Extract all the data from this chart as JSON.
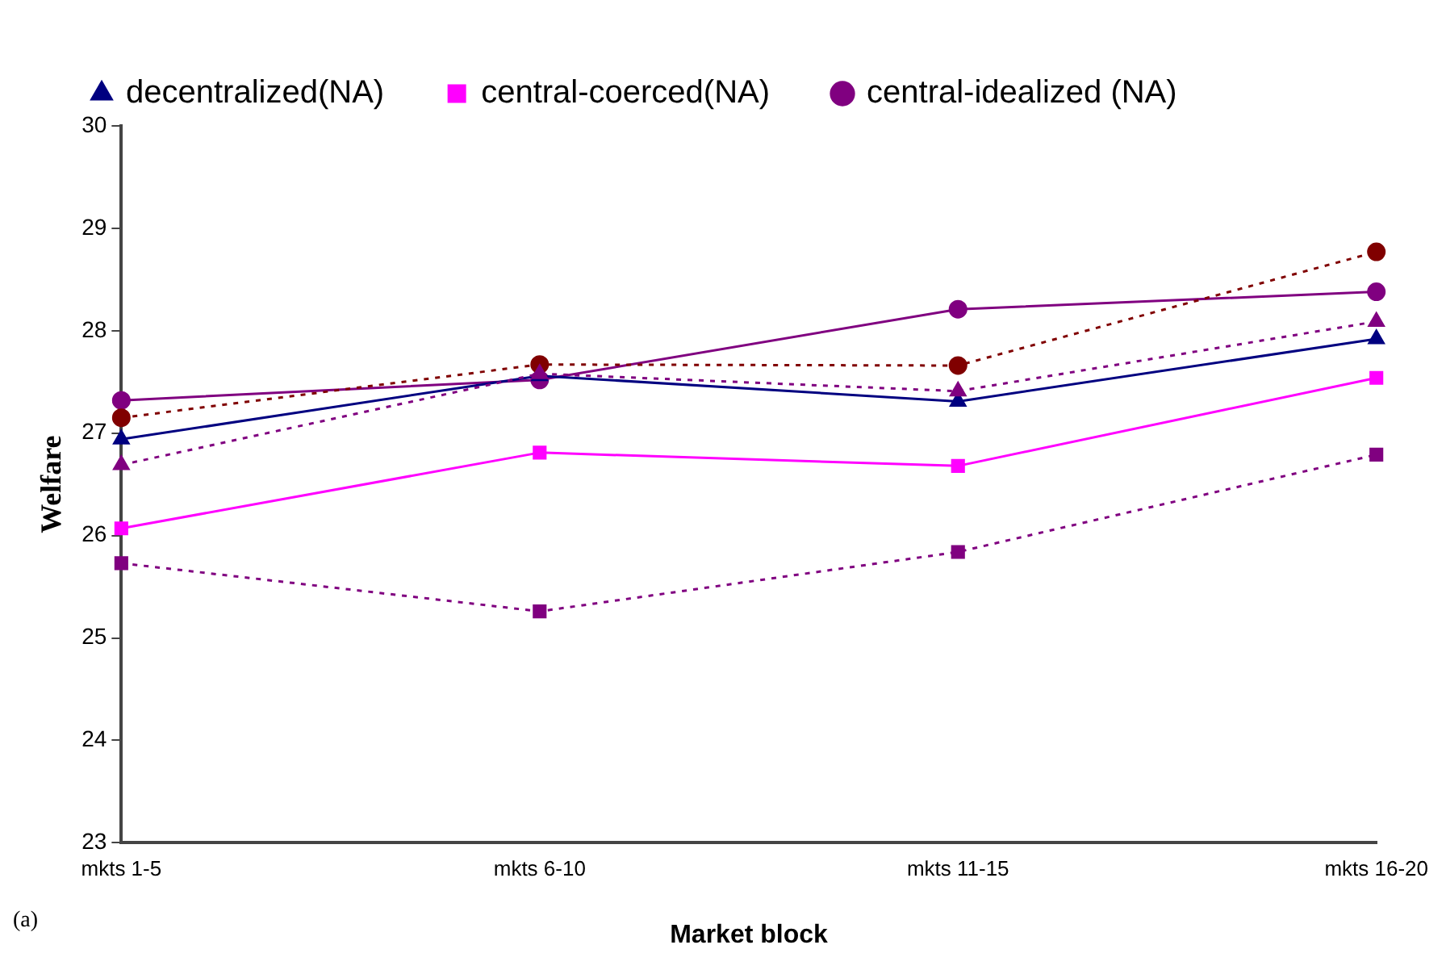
{
  "chart_data": {
    "type": "line",
    "xlabel": "Market block",
    "ylabel": "Welfare",
    "categories": [
      "mkts 1-5",
      "mkts 6-10",
      "mkts 11-15",
      "mkts 16-20"
    ],
    "series": [
      {
        "name": "decentralized(NA)",
        "color": "#000080",
        "marker": "triangle",
        "line_style": "solid",
        "values": [
          26.94,
          27.56,
          27.31,
          27.92
        ]
      },
      {
        "name": "central-coerced(NA)",
        "color": "#ff00ff",
        "marker": "square",
        "line_style": "solid",
        "values": [
          26.07,
          26.81,
          26.68,
          27.54
        ]
      },
      {
        "name": "central-idealized (NA)",
        "color": "#800080",
        "marker": "circle",
        "line_style": "solid",
        "values": [
          27.32,
          27.52,
          28.21,
          28.38
        ]
      },
      {
        "color": "#800080",
        "marker": "triangle",
        "line_style": "dotted",
        "values": [
          26.69,
          27.58,
          27.41,
          28.09
        ]
      },
      {
        "color": "#800080",
        "marker": "square",
        "line_style": "dotted",
        "values": [
          25.73,
          25.26,
          25.84,
          26.79
        ]
      },
      {
        "color": "#800000",
        "marker": "circle",
        "line_style": "dotted",
        "values": [
          27.15,
          27.67,
          27.66,
          28.77
        ]
      }
    ],
    "ylim": [
      23,
      30
    ],
    "yticks": [
      23,
      24,
      25,
      26,
      27,
      28,
      29,
      30
    ],
    "grid": false,
    "legend": "top left",
    "annotations": [
      "(a)"
    ]
  }
}
